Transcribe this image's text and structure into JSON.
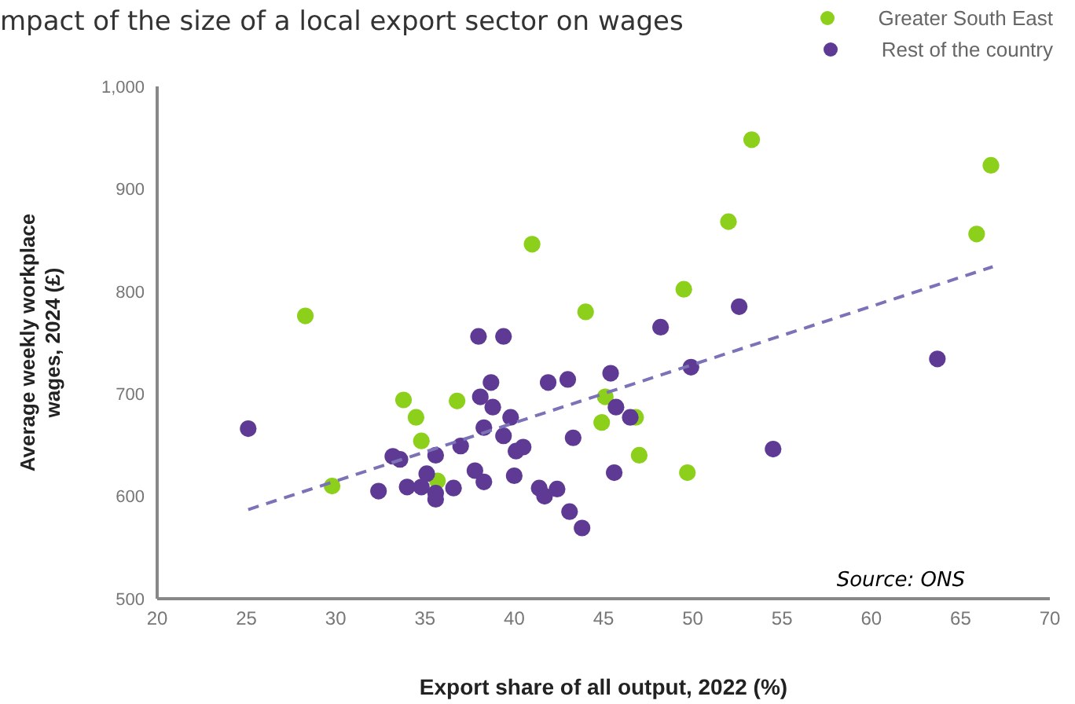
{
  "chart_data": {
    "type": "scatter",
    "title": "mpact of the size of a local export sector on wages",
    "xlabel": "Export share of all output, 2022 (%)",
    "ylabel": "Average weekly workplace wages, 2024 (£)",
    "xlim": [
      20,
      70
    ],
    "xticks": [
      20,
      25,
      30,
      35,
      40,
      45,
      50,
      55,
      60,
      65,
      70
    ],
    "ylim": [
      500,
      1000
    ],
    "yticks": [
      500,
      600,
      700,
      800,
      {
        "value": 1000,
        "label": "1,000"
      },
      900
    ],
    "grid": false,
    "legend": "top right",
    "marker": "circle",
    "annotations": [
      "Source: ONS"
    ],
    "series": [
      {
        "name": "Greater South East",
        "color": "#8cd01c",
        "x": [
          28.3,
          29.8,
          33.8,
          34.5,
          34.8,
          35.7,
          36.8,
          41.0,
          44.0,
          44.9,
          45.1,
          46.8,
          47.0,
          49.5,
          49.7,
          52.0,
          53.3,
          65.9,
          66.7
        ],
        "values": [
          776,
          610,
          694,
          677,
          654,
          615,
          693,
          846,
          780,
          672,
          697,
          677,
          640,
          802,
          623,
          868,
          948,
          856,
          923
        ]
      },
      {
        "name": "Rest of the country",
        "color": "#5e3a94",
        "x": [
          25.1,
          32.4,
          33.2,
          33.6,
          34.0,
          34.8,
          35.1,
          35.6,
          35.6,
          35.6,
          36.6,
          37.0,
          37.8,
          38.3,
          38.0,
          39.4,
          38.7,
          38.1,
          38.8,
          38.3,
          39.8,
          39.4,
          40.1,
          40.5,
          40.0,
          41.9,
          43.0,
          43.3,
          41.4,
          41.7,
          42.4,
          43.1,
          43.8,
          45.4,
          45.6,
          45.7,
          46.5,
          48.2,
          49.9,
          52.6,
          54.5,
          63.7
        ],
        "values": [
          666,
          605,
          639,
          636,
          609,
          609,
          622,
          640,
          603,
          597,
          608,
          649,
          625,
          614,
          756,
          756,
          711,
          697,
          687,
          667,
          677,
          659,
          644,
          648,
          620,
          711,
          714,
          657,
          608,
          600,
          607,
          585,
          569,
          720,
          623,
          687,
          677,
          765,
          726,
          785,
          646,
          734
        ]
      },
      {
        "type": "line",
        "color": "#7b72b8",
        "line_style": "dashed",
        "marker": "none",
        "x": [
          25.1,
          66.8
        ],
        "values": [
          587,
          824
        ]
      }
    ]
  }
}
